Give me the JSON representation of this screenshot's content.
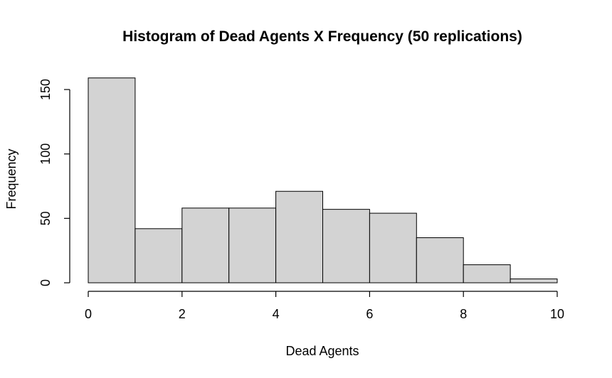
{
  "chart_data": {
    "type": "bar",
    "title": "Histogram of Dead Agents X Frequency (50 replications)",
    "xlabel": "Dead Agents",
    "ylabel": "Frequency",
    "xlim": [
      0,
      10
    ],
    "ylim": [
      0,
      160
    ],
    "x_ticks": [
      0,
      2,
      4,
      6,
      8,
      10
    ],
    "y_ticks": [
      0,
      50,
      100,
      150
    ],
    "bin_edges": [
      0,
      1,
      2,
      3,
      4,
      5,
      6,
      7,
      8,
      9,
      10
    ],
    "values": [
      159,
      42,
      58,
      58,
      71,
      57,
      54,
      35,
      14,
      3
    ],
    "grid": false,
    "bar_color": "#d3d3d3",
    "edge_color": "#000000"
  }
}
